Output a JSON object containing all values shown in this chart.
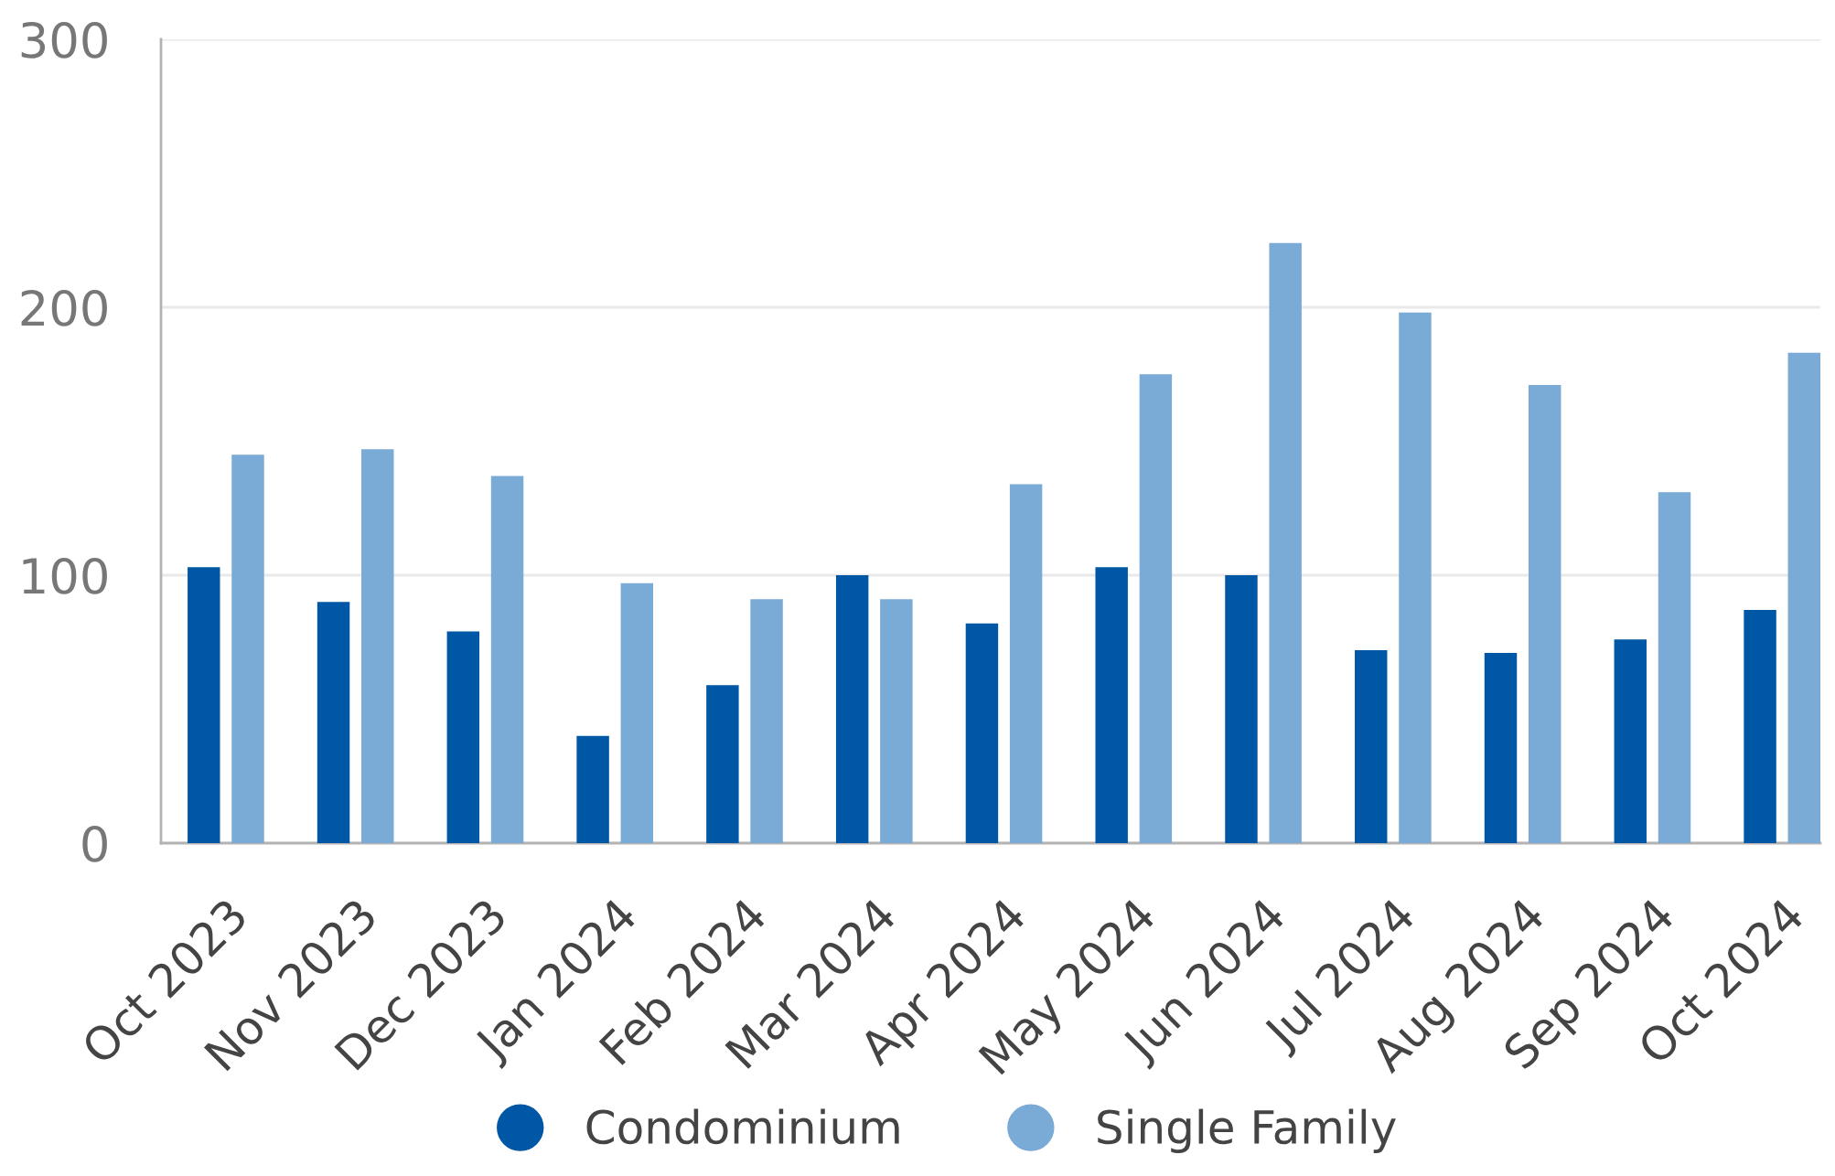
{
  "chart_data": {
    "type": "bar",
    "categories": [
      "Oct 2023",
      "Nov 2023",
      "Dec 2023",
      "Jan 2024",
      "Feb 2024",
      "Mar 2024",
      "Apr 2024",
      "May 2024",
      "Jun 2024",
      "Jul 2024",
      "Aug 2024",
      "Sep 2024",
      "Oct 2024"
    ],
    "series": [
      {
        "name": "Condominium",
        "color": "#0057a5",
        "values": [
          103,
          90,
          79,
          40,
          59,
          100,
          82,
          103,
          100,
          72,
          71,
          76,
          87
        ]
      },
      {
        "name": "Single Family",
        "color": "#7aaad6",
        "values": [
          145,
          147,
          137,
          97,
          91,
          91,
          134,
          175,
          224,
          198,
          171,
          131,
          183
        ]
      }
    ],
    "ylim": [
      0,
      300
    ],
    "yticks": [
      0,
      100,
      200,
      300
    ],
    "grid": "y",
    "legend": "bottom"
  }
}
